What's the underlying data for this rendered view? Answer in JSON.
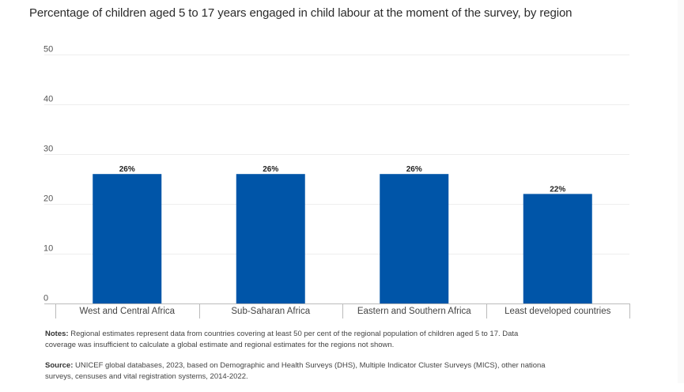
{
  "title": "Percentage of children aged 5 to 17 years engaged in child labour at the moment of the survey, by region",
  "notes": {
    "label": "Notes:",
    "line1": " Regional estimates represent data from countries covering at least 50 per cent of the regional population of children aged 5 to 17. Data",
    "line2": "coverage was insufficient to calculate a global estimate and regional estimates for the regions not shown."
  },
  "source": {
    "label": "Source:",
    "line1": " UNICEF global databases, 2023, based on Demographic and Health Surveys (DHS), Multiple Indicator Cluster Surveys (MICS), other nationa",
    "line2": "surveys, censuses and vital registration systems, 2014-2022."
  },
  "colors": {
    "bar": "#0055a8",
    "grid": "#eeeeee",
    "axis": "#bbbbbb"
  },
  "chart_data": {
    "type": "bar",
    "title": "Percentage of children aged 5 to 17 years engaged in child labour at the moment of the survey, by region",
    "xlabel": "",
    "ylabel": "",
    "categories": [
      "West and Central Africa",
      "Sub-Saharan Africa",
      "Eastern and Southern Africa",
      "Least developed countries"
    ],
    "values": [
      26,
      26,
      26,
      22
    ],
    "data_labels": [
      "26%",
      "26%",
      "26%",
      "22%"
    ],
    "ylim": [
      0,
      50
    ],
    "yticks": [
      0,
      10,
      20,
      30,
      40,
      50
    ],
    "grid": true,
    "legend": "none"
  }
}
